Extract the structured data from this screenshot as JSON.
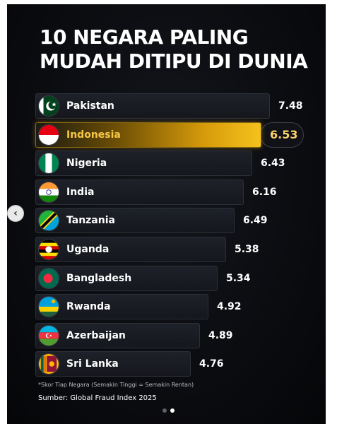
{
  "title": "10 NEGARA PALING\nMUDAH DITIPU DI DUNIA",
  "nav": {
    "prev_icon": "chevron-left-icon"
  },
  "footnote": "*Skor Tiap Negara (Semakin Tinggi = Semakin Rentan)",
  "source": "Sumber: Global Fraud Index 2025",
  "carousel": {
    "total": 2,
    "active": 1
  },
  "colors": {
    "highlight": "#f5c21c",
    "bar": "#1e2129",
    "background": "#0b0c10"
  },
  "chart_data": {
    "type": "bar",
    "orientation": "horizontal",
    "title": "10 NEGARA PALING MUDAH DITIPU DI DUNIA",
    "highlighted": "Indonesia",
    "categories": [
      "Pakistan",
      "Indonesia",
      "Nigeria",
      "India",
      "Tanzania",
      "Uganda",
      "Bangladesh",
      "Rwanda",
      "Azerbaijan",
      "Sri Lanka"
    ],
    "values": [
      7.48,
      6.53,
      6.43,
      6.16,
      6.49,
      5.38,
      5.34,
      4.92,
      4.89,
      4.76
    ],
    "labels": [
      "7.48",
      "6.53",
      "6.43",
      "6.16",
      "6.49",
      "5.38",
      "5.34",
      "4.92",
      "4.89",
      "4.76"
    ],
    "flags": [
      "pakistan-flag-icon",
      "indonesia-flag-icon",
      "nigeria-flag-icon",
      "india-flag-icon",
      "tanzania-flag-icon",
      "uganda-flag-icon",
      "bangladesh-flag-icon",
      "rwanda-flag-icon",
      "azerbaijan-flag-icon",
      "sri-lanka-flag-icon"
    ]
  }
}
